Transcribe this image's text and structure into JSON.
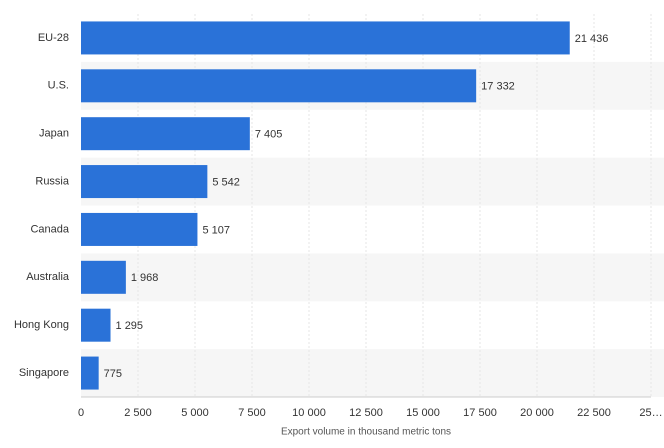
{
  "chart_data": {
    "type": "hbar",
    "categories": [
      "EU-28",
      "U.S.",
      "Japan",
      "Russia",
      "Canada",
      "Australia",
      "Hong Kong",
      "Singapore"
    ],
    "values": [
      21436,
      17332,
      7405,
      5542,
      5107,
      1968,
      1295,
      775
    ],
    "value_labels": [
      "21 436",
      "17 332",
      "7 405",
      "5 542",
      "5 107",
      "1 968",
      "1 295",
      "775"
    ],
    "color": "#2a72d8",
    "x_label": "Export volume in thousand metric tons",
    "xlim": [
      0,
      25000
    ],
    "xticks": [
      0,
      {
        "value": 2500,
        "label": "2 500"
      },
      {
        "value": 5000,
        "label": "5 000"
      },
      {
        "value": 7500,
        "label": "7 500"
      },
      {
        "value": 10000,
        "label": "10 000"
      },
      {
        "value": 12500,
        "label": "12 500"
      },
      {
        "value": 15000,
        "label": "15 000"
      },
      {
        "value": 17500,
        "label": "17 500"
      },
      {
        "value": 20000,
        "label": "20 000"
      },
      {
        "value": 22500,
        "label": "22 500"
      },
      {
        "value": 25000,
        "label": "25…"
      }
    ],
    "grid": true
  }
}
